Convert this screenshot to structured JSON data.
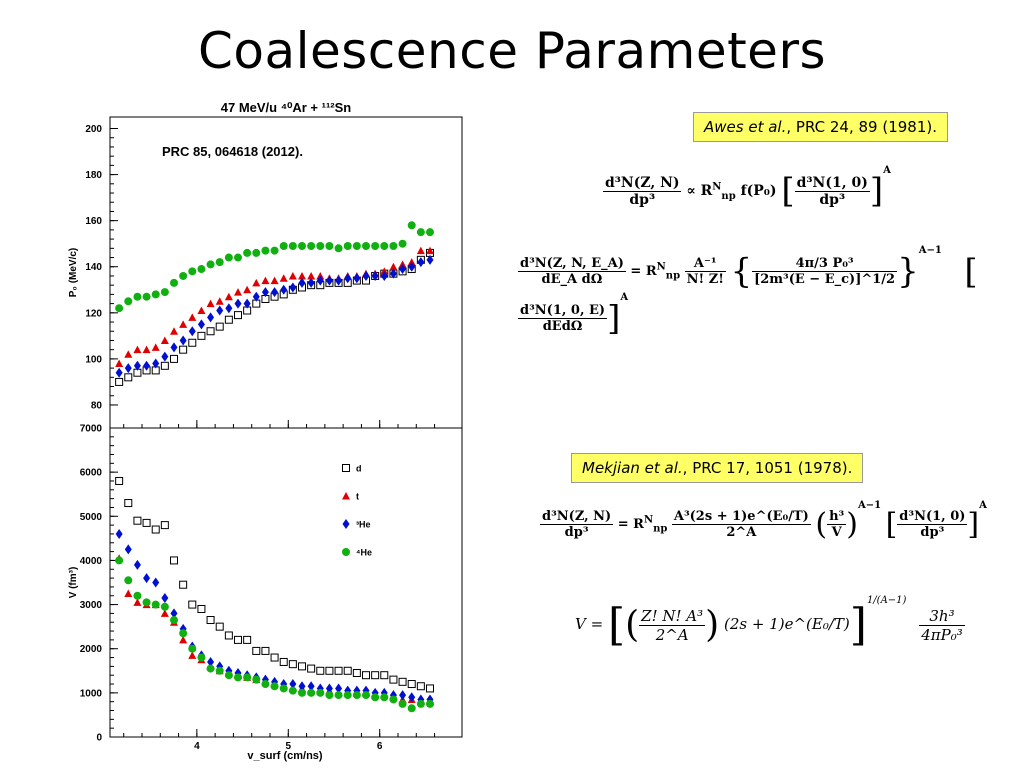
{
  "slide": {
    "title": "Coalescence Parameters"
  },
  "refs": {
    "awes_author": "Awes et al.",
    "awes_rest": ", PRC 24, 89 (1981).",
    "mekjian_author": "Mekjian et al.",
    "mekjian_rest": ", PRC 17, 1051 (1978)."
  },
  "equations": {
    "eq1_lhs_num": "d³N(Z, N)",
    "eq1_lhs_den": "dp³",
    "eq1_mid": "∝ R",
    "eq1_mid_sup": "N",
    "eq1_mid_sub": "np",
    "eq1_f": "f(P₀)",
    "eq1_rhs_num": "d³N(1, 0)",
    "eq1_rhs_den": "dp³",
    "eq1_pow": "A",
    "eq2_lhs_num": "d³N(Z, N, E_A)",
    "eq2_lhs_den": "dE_A dΩ",
    "eq2_eq": "= R",
    "eq2_sup": "N",
    "eq2_sub": "np",
    "eq2_f1_num": "A⁻¹",
    "eq2_f1_den": "N! Z!",
    "eq2_f2_num": "4π/3 P₀³",
    "eq2_f2_den": "[2m³(E − E_c)]^1/2",
    "eq2_pow1": "A−1",
    "eq2_rhs_num": "d³N(1, 0, E)",
    "eq2_rhs_den": "dEdΩ",
    "eq2_pow2": "A",
    "eq3_lhs_num": "d³N(Z, N)",
    "eq3_lhs_den": "dp³",
    "eq3_eq": "= R",
    "eq3_sup": "N",
    "eq3_sub": "np",
    "eq3_f_num": "A³(2s + 1)e^(E₀/T)",
    "eq3_f_den": "2^A",
    "eq3_h_num": "h³",
    "eq3_h_den": "V",
    "eq3_pow1": "A−1",
    "eq3_rhs_num": "d³N(1, 0)",
    "eq3_rhs_den": "dp³",
    "eq3_pow2": "A",
    "eq4_lhs": "V =",
    "eq4_f_num": "Z! N! A³",
    "eq4_f_den": "2^A",
    "eq4_mid": "(2s + 1)e^(E₀/T)",
    "eq4_pow": "1/(A−1)",
    "eq4_r_num": "3h³",
    "eq4_r_den": "4πP₀³"
  },
  "chart_data": [
    {
      "type": "scatter",
      "title": "47 MeV/u ⁴⁰Ar + ¹¹²Sn",
      "annotation": "PRC 85, 064618 (2012).",
      "xlabel": "",
      "ylabel": "P₀ (MeV/c)",
      "xlim": [
        3.05,
        6.9
      ],
      "ylim": [
        70,
        205
      ],
      "yticks": [
        80,
        100,
        120,
        140,
        160,
        180,
        200
      ],
      "series": [
        {
          "name": "d",
          "marker": "open-square",
          "color": "#000000",
          "x": [
            3.15,
            3.25,
            3.35,
            3.45,
            3.55,
            3.65,
            3.75,
            3.85,
            3.95,
            4.05,
            4.15,
            4.25,
            4.35,
            4.45,
            4.55,
            4.65,
            4.75,
            4.85,
            4.95,
            5.05,
            5.15,
            5.25,
            5.35,
            5.45,
            5.55,
            5.65,
            5.75,
            5.85,
            5.95,
            6.05,
            6.15,
            6.25,
            6.35,
            6.45,
            6.55
          ],
          "y": [
            90,
            92,
            94,
            95,
            95,
            97,
            100,
            104,
            107,
            110,
            112,
            114,
            117,
            119,
            121,
            124,
            126,
            127,
            128,
            130,
            131,
            132,
            132,
            133,
            133,
            133,
            134,
            134,
            136,
            137,
            137,
            138,
            139,
            143,
            146
          ]
        },
        {
          "name": "t",
          "marker": "triangle",
          "color": "#e00000",
          "x": [
            3.15,
            3.25,
            3.35,
            3.45,
            3.55,
            3.65,
            3.75,
            3.85,
            3.95,
            4.05,
            4.15,
            4.25,
            4.35,
            4.45,
            4.55,
            4.65,
            4.75,
            4.85,
            4.95,
            5.05,
            5.15,
            5.25,
            5.35,
            5.45,
            5.55,
            5.65,
            5.75,
            5.85,
            5.95,
            6.05,
            6.15,
            6.25,
            6.35,
            6.45,
            6.55
          ],
          "y": [
            98,
            102,
            104,
            104,
            105,
            108,
            112,
            115,
            118,
            121,
            124,
            125,
            127,
            129,
            130,
            133,
            134,
            134,
            135,
            136,
            136,
            136,
            136,
            135,
            135,
            136,
            136,
            137,
            137,
            138,
            140,
            141,
            142,
            147,
            147
          ]
        },
        {
          "name": "³He",
          "marker": "diamond",
          "color": "#0010d0",
          "x": [
            3.15,
            3.25,
            3.35,
            3.45,
            3.55,
            3.65,
            3.75,
            3.85,
            3.95,
            4.05,
            4.15,
            4.25,
            4.35,
            4.45,
            4.55,
            4.65,
            4.75,
            4.85,
            4.95,
            5.05,
            5.15,
            5.25,
            5.35,
            5.45,
            5.55,
            5.65,
            5.75,
            5.85,
            5.95,
            6.05,
            6.15,
            6.25,
            6.35,
            6.45,
            6.55
          ],
          "y": [
            94,
            96,
            97,
            97,
            98,
            101,
            105,
            108,
            112,
            115,
            118,
            121,
            122,
            124,
            124,
            127,
            129,
            129,
            130,
            131,
            133,
            133,
            134,
            134,
            134,
            135,
            135,
            136,
            136,
            136,
            137,
            139,
            140,
            142,
            143
          ]
        },
        {
          "name": "⁴He",
          "marker": "circle",
          "color": "#10b010",
          "x": [
            3.15,
            3.25,
            3.35,
            3.45,
            3.55,
            3.65,
            3.75,
            3.85,
            3.95,
            4.05,
            4.15,
            4.25,
            4.35,
            4.45,
            4.55,
            4.65,
            4.75,
            4.85,
            4.95,
            5.05,
            5.15,
            5.25,
            5.35,
            5.45,
            5.55,
            5.65,
            5.75,
            5.85,
            5.95,
            6.05,
            6.15,
            6.25,
            6.35,
            6.45,
            6.55
          ],
          "y": [
            122,
            125,
            127,
            127,
            128,
            129,
            133,
            136,
            138,
            139,
            141,
            142,
            144,
            144,
            146,
            146,
            147,
            147,
            149,
            149,
            149,
            149,
            149,
            149,
            148,
            149,
            149,
            149,
            149,
            149,
            149,
            150,
            158,
            155,
            155
          ]
        }
      ]
    },
    {
      "type": "scatter",
      "title": "",
      "xlabel": "v_surf (cm/ns)",
      "ylabel": "V (fm³)",
      "xlim": [
        3.05,
        6.9
      ],
      "ylim": [
        0,
        7000
      ],
      "xticks": [
        4,
        5,
        6
      ],
      "yticks": [
        0,
        1000,
        2000,
        3000,
        4000,
        5000,
        6000,
        7000
      ],
      "legend": "top-right",
      "series": [
        {
          "name": "d",
          "marker": "open-square",
          "color": "#000000",
          "x": [
            3.15,
            3.25,
            3.35,
            3.45,
            3.55,
            3.65,
            3.75,
            3.85,
            3.95,
            4.05,
            4.15,
            4.25,
            4.35,
            4.45,
            4.55,
            4.65,
            4.75,
            4.85,
            4.95,
            5.05,
            5.15,
            5.25,
            5.35,
            5.45,
            5.55,
            5.65,
            5.75,
            5.85,
            5.95,
            6.05,
            6.15,
            6.25,
            6.35,
            6.45,
            6.55
          ],
          "y": [
            5800,
            5300,
            4900,
            4850,
            4700,
            4800,
            4000,
            3450,
            3000,
            2900,
            2650,
            2500,
            2300,
            2200,
            2200,
            1950,
            1950,
            1800,
            1700,
            1650,
            1600,
            1550,
            1500,
            1500,
            1500,
            1500,
            1450,
            1400,
            1400,
            1400,
            1300,
            1250,
            1200,
            1150,
            1100
          ]
        },
        {
          "name": "t",
          "marker": "triangle",
          "color": "#e00000",
          "x": [
            3.15,
            3.25,
            3.35,
            3.45,
            3.55,
            3.65,
            3.75,
            3.85,
            3.95,
            4.05,
            4.15,
            4.25,
            4.35,
            4.45,
            4.55,
            4.65,
            4.75,
            4.85,
            4.95,
            5.05,
            5.15,
            5.25,
            5.35,
            5.45,
            5.55,
            5.65,
            5.75,
            5.85,
            5.95,
            6.05,
            6.15,
            6.25,
            6.35,
            6.45,
            6.55
          ],
          "y": [
            4050,
            3250,
            3050,
            3000,
            3000,
            2800,
            2600,
            2200,
            1850,
            1750,
            1600,
            1500,
            1450,
            1400,
            1350,
            1300,
            1250,
            1200,
            1150,
            1100,
            1100,
            1050,
            1050,
            1050,
            1000,
            1000,
            1000,
            1000,
            950,
            950,
            900,
            850,
            850,
            800,
            800
          ]
        },
        {
          "name": "³He",
          "marker": "diamond",
          "color": "#0010d0",
          "x": [
            3.15,
            3.25,
            3.35,
            3.45,
            3.55,
            3.65,
            3.75,
            3.85,
            3.95,
            4.05,
            4.15,
            4.25,
            4.35,
            4.45,
            4.55,
            4.65,
            4.75,
            4.85,
            4.95,
            5.05,
            5.15,
            5.25,
            5.35,
            5.45,
            5.55,
            5.65,
            5.75,
            5.85,
            5.95,
            6.05,
            6.15,
            6.25,
            6.35,
            6.45,
            6.55
          ],
          "y": [
            4600,
            4250,
            3900,
            3600,
            3500,
            3150,
            2800,
            2450,
            2050,
            1850,
            1700,
            1600,
            1500,
            1450,
            1400,
            1350,
            1300,
            1250,
            1200,
            1200,
            1150,
            1150,
            1100,
            1100,
            1100,
            1050,
            1050,
            1050,
            1000,
            1000,
            950,
            950,
            900,
            850,
            850
          ]
        },
        {
          "name": "⁴He",
          "marker": "circle",
          "color": "#10b010",
          "x": [
            3.15,
            3.25,
            3.35,
            3.45,
            3.55,
            3.65,
            3.75,
            3.85,
            3.95,
            4.05,
            4.15,
            4.25,
            4.35,
            4.45,
            4.55,
            4.65,
            4.75,
            4.85,
            4.95,
            5.05,
            5.15,
            5.25,
            5.35,
            5.45,
            5.55,
            5.65,
            5.75,
            5.85,
            5.95,
            6.05,
            6.15,
            6.25,
            6.35,
            6.45,
            6.55
          ],
          "y": [
            4000,
            3550,
            3200,
            3050,
            3000,
            2950,
            2650,
            2350,
            2000,
            1800,
            1550,
            1500,
            1400,
            1350,
            1350,
            1300,
            1200,
            1150,
            1100,
            1050,
            1000,
            1000,
            1000,
            950,
            950,
            950,
            950,
            950,
            900,
            900,
            850,
            750,
            650,
            750,
            750
          ]
        }
      ]
    }
  ]
}
